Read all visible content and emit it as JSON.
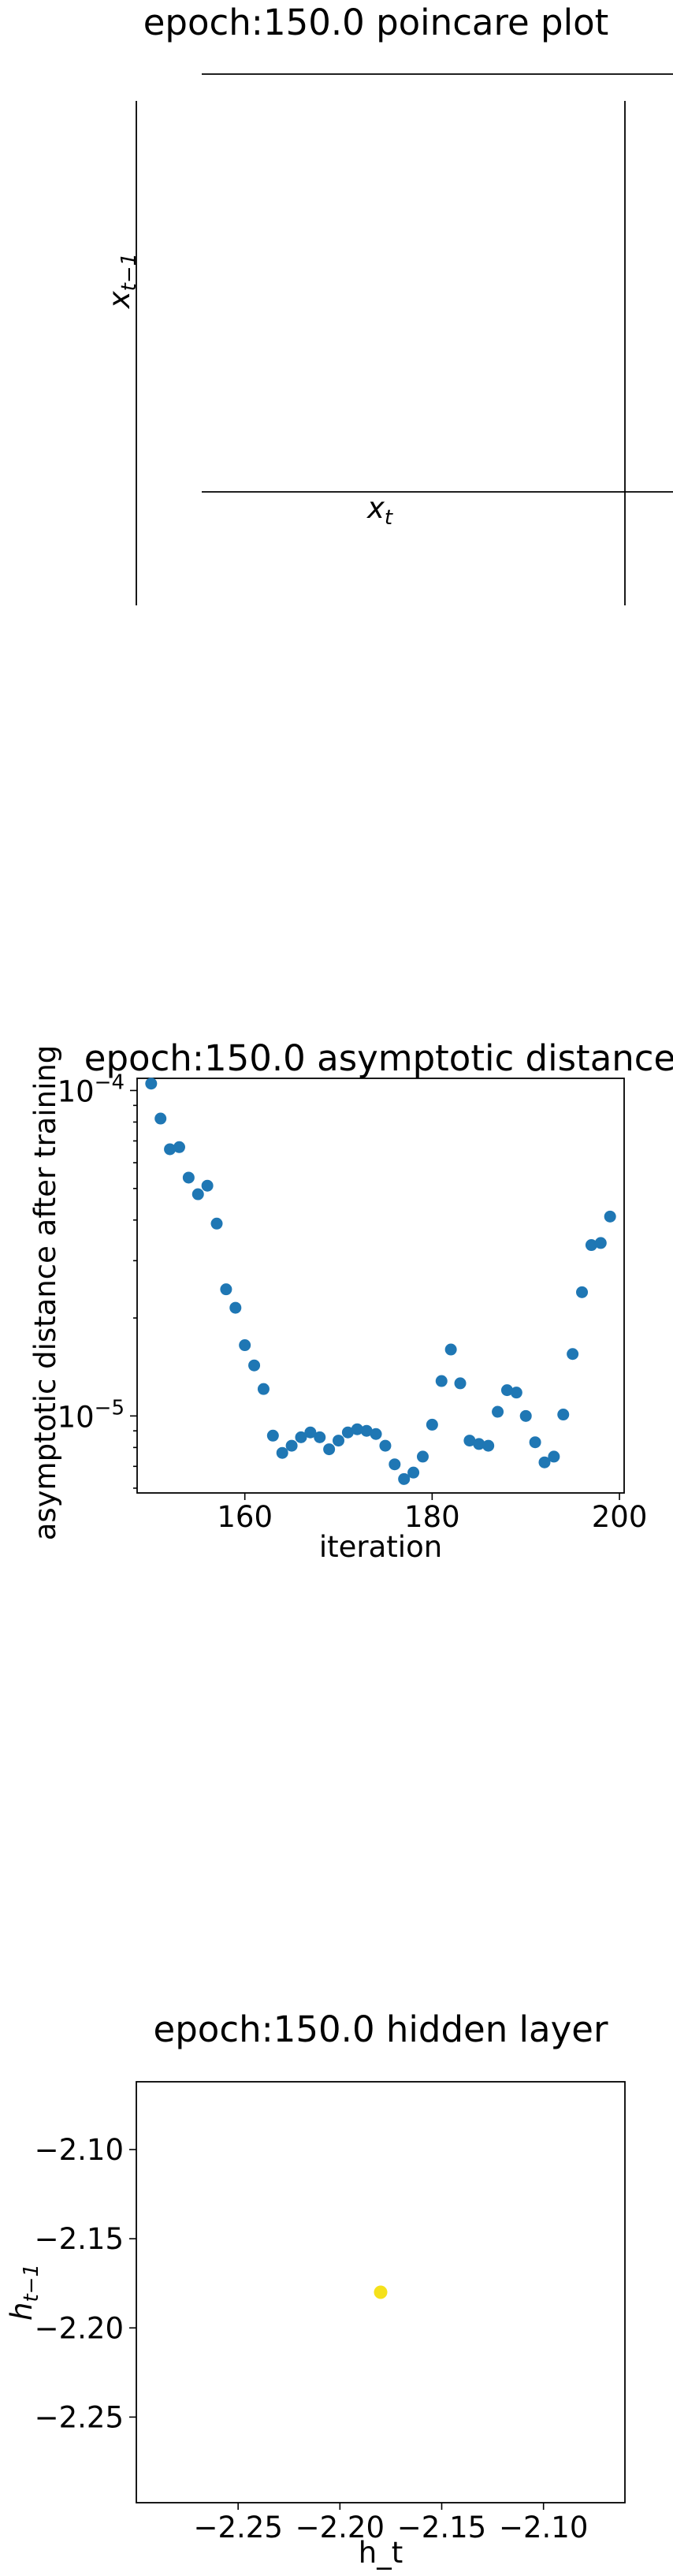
{
  "chart_data": [
    {
      "type": "line",
      "title": "epoch:150.0 poincare plot",
      "xlabel": "x_t",
      "ylabel": "x_{t-1}",
      "series": []
    },
    {
      "type": "scatter",
      "title": "epoch:150.0 asymptotic distance",
      "xlabel": "iteration",
      "ylabel": "asymptotic distance after training",
      "yscale": "log",
      "xlim": [
        148.5,
        200.5
      ],
      "ylim": [
        5.8e-06,
        0.000109
      ],
      "xticks": [
        160,
        180,
        200
      ],
      "yticks": [
        {
          "value": 1e-05,
          "mantissa": "10",
          "exponent": "−5"
        },
        {
          "value": 0.0001,
          "mantissa": "10",
          "exponent": "−4"
        }
      ],
      "marker_color": "#1f77b4",
      "series": [
        {
          "x": [
            150,
            151,
            152,
            153,
            154,
            155,
            156,
            157,
            158,
            159,
            160,
            161,
            162,
            163,
            164,
            165,
            166,
            167,
            168,
            169,
            170,
            171,
            172,
            173,
            174,
            175,
            176,
            177,
            178,
            179,
            180,
            181,
            182,
            183,
            184,
            185,
            186,
            187,
            188,
            189,
            190,
            191,
            192,
            193,
            194,
            195,
            196,
            197,
            198,
            199
          ],
          "y": [
            0.000105,
            8.2e-05,
            6.6e-05,
            6.7e-05,
            5.4e-05,
            4.8e-05,
            5.1e-05,
            3.9e-05,
            2.45e-05,
            2.15e-05,
            1.65e-05,
            1.43e-05,
            1.21e-05,
            8.7e-06,
            7.7e-06,
            8.1e-06,
            8.6e-06,
            8.9e-06,
            8.6e-06,
            7.9e-06,
            8.4e-06,
            8.9e-06,
            9.1e-06,
            9e-06,
            8.8e-06,
            8.1e-06,
            7.1e-06,
            6.4e-06,
            6.7e-06,
            7.5e-06,
            9.4e-06,
            1.28e-05,
            1.6e-05,
            1.26e-05,
            8.4e-06,
            8.2e-06,
            8.1e-06,
            1.03e-05,
            1.2e-05,
            1.18e-05,
            1e-05,
            8.3e-06,
            7.2e-06,
            7.5e-06,
            1.01e-05,
            1.55e-05,
            2.4e-05,
            3.35e-05,
            3.4e-05,
            4.1e-05
          ]
        }
      ]
    },
    {
      "type": "scatter",
      "title": "epoch:150.0 hidden layer",
      "xlabel": "h_t",
      "ylabel": "h_{t-1}",
      "xlim": [
        -2.3,
        -2.06
      ],
      "ylim": [
        -2.298,
        -2.062
      ],
      "xticks": [
        -2.25,
        -2.2,
        -2.15,
        -2.1
      ],
      "yticks": [
        -2.25,
        -2.2,
        -2.15,
        -2.1
      ],
      "xtick_labels": [
        "−2.25",
        "−2.20",
        "−2.15",
        "−2.10"
      ],
      "ytick_labels": [
        "−2.25",
        "−2.20",
        "−2.15",
        "−2.10"
      ],
      "marker_color": "#f5e11b",
      "series": [
        {
          "x": [
            -2.18
          ],
          "y": [
            -2.18
          ]
        }
      ]
    }
  ]
}
